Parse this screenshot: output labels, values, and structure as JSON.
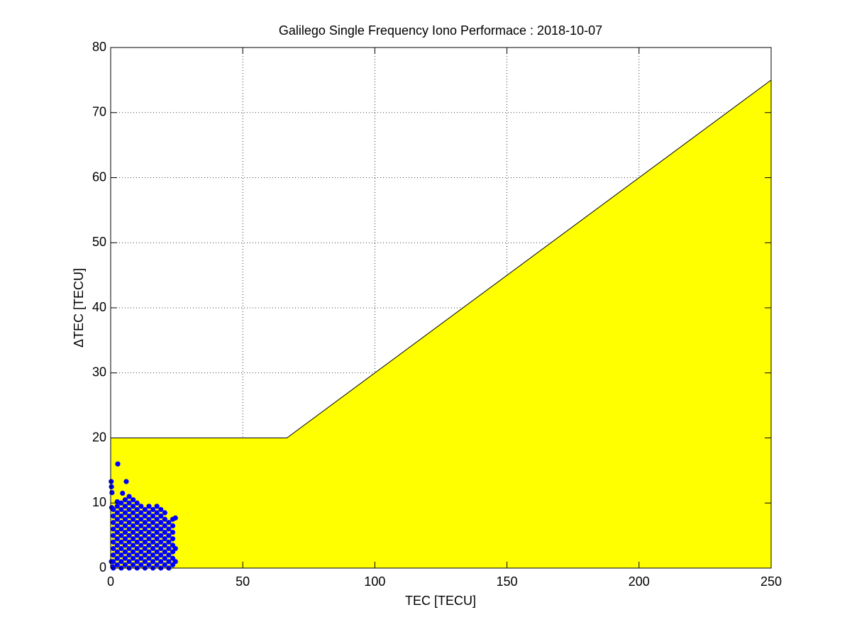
{
  "chart_data": {
    "type": "scatter",
    "title": "Galilego Single Frequency Iono Performace : 2018-10-07",
    "x_label": "TEC [TECU]",
    "y_label": "ΔTEC [TECU]",
    "xlim": [
      0,
      250
    ],
    "ylim": [
      0,
      80
    ],
    "xticks": [
      0,
      50,
      100,
      150,
      200,
      250
    ],
    "yticks": [
      0,
      10,
      20,
      30,
      40,
      50,
      60,
      70,
      80
    ],
    "grid": true,
    "series": [
      {
        "type": "area",
        "color": "#ffff00",
        "x": [
          0,
          66.7,
          250
        ],
        "values": [
          20,
          20,
          75
        ]
      },
      {
        "type": "scatter",
        "color": "#0000ff",
        "x": [
          1,
          1,
          1,
          1,
          1,
          1,
          1,
          1,
          1,
          1,
          2.5,
          2.5,
          2.5,
          2.5,
          2.5,
          2.5,
          2.5,
          2.5,
          2.5,
          2.5,
          2.5,
          4,
          4,
          4,
          4,
          4,
          4,
          4,
          4,
          4,
          4,
          4,
          5.5,
          5.5,
          5.5,
          5.5,
          5.5,
          5.5,
          5.5,
          5.5,
          5.5,
          5.5,
          5.5,
          7,
          7,
          7,
          7,
          7,
          7,
          7,
          7,
          7,
          7,
          7,
          7,
          8.5,
          8.5,
          8.5,
          8.5,
          8.5,
          8.5,
          8.5,
          8.5,
          8.5,
          8.5,
          8.5,
          10,
          10,
          10,
          10,
          10,
          10,
          10,
          10,
          10,
          10,
          10,
          11.5,
          11.5,
          11.5,
          11.5,
          11.5,
          11.5,
          11.5,
          11.5,
          11.5,
          11.5,
          13,
          13,
          13,
          13,
          13,
          13,
          13,
          13,
          13,
          13,
          14.5,
          14.5,
          14.5,
          14.5,
          14.5,
          14.5,
          14.5,
          14.5,
          14.5,
          14.5,
          16,
          16,
          16,
          16,
          16,
          16,
          16,
          16,
          16,
          16,
          17.5,
          17.5,
          17.5,
          17.5,
          17.5,
          17.5,
          17.5,
          17.5,
          17.5,
          17.5,
          19,
          19,
          19,
          19,
          19,
          19,
          19,
          19,
          19,
          19,
          20.5,
          20.5,
          20.5,
          20.5,
          20.5,
          20.5,
          20.5,
          20.5,
          20.5,
          22,
          22,
          22,
          22,
          22,
          22,
          22,
          22,
          23.5,
          23.5,
          23.5,
          23.5,
          23.5,
          23.5,
          23.5,
          23.5,
          0.2,
          0.3,
          0.5,
          0.4,
          2.7,
          5.9,
          4.5,
          0.3,
          0.8,
          24.5,
          24.5,
          24.5
        ],
        "values": [
          0,
          1,
          2,
          3,
          4,
          5,
          6,
          7,
          8,
          9,
          0.5,
          1.5,
          2.5,
          3.5,
          4.5,
          5.5,
          6.5,
          7.5,
          8.5,
          9.5,
          10.2,
          0,
          1,
          2,
          3,
          4,
          5,
          6,
          7,
          8,
          9,
          10,
          0.5,
          1.5,
          2.5,
          3.5,
          4.5,
          5.5,
          6.5,
          7.5,
          8.5,
          9.5,
          10.5,
          0,
          1,
          2,
          3,
          4,
          5,
          6,
          7,
          8,
          9,
          10,
          11,
          0.5,
          1.5,
          2.5,
          3.5,
          4.5,
          5.5,
          6.5,
          7.5,
          8.5,
          9.5,
          10.5,
          0,
          1,
          2,
          3,
          4,
          5,
          6,
          7,
          8,
          9,
          10,
          0.5,
          1.5,
          2.5,
          3.5,
          4.5,
          5.5,
          6.5,
          7.5,
          8.5,
          9.5,
          0,
          1,
          2,
          3,
          4,
          5,
          6,
          7,
          8,
          9,
          0.5,
          1.5,
          2.5,
          3.5,
          4.5,
          5.5,
          6.5,
          7.5,
          8.5,
          9.5,
          0,
          1,
          2,
          3,
          4,
          5,
          6,
          7,
          8,
          9,
          0.5,
          1.5,
          2.5,
          3.5,
          4.5,
          5.5,
          6.5,
          7.5,
          8.5,
          9.5,
          0,
          1,
          2,
          3,
          4,
          5,
          6,
          7,
          8,
          9,
          0.5,
          1.5,
          2.5,
          3.5,
          4.5,
          5.5,
          6.5,
          7.5,
          8.5,
          0,
          1,
          2,
          3,
          4,
          5,
          6,
          7,
          0.5,
          1.5,
          2.5,
          3.5,
          4.5,
          5.5,
          6.5,
          7.5,
          13.3,
          12.5,
          11.6,
          9.3,
          16.0,
          13.3,
          11.5,
          1.0,
          0.2,
          1,
          3,
          7.7
        ]
      }
    ]
  }
}
